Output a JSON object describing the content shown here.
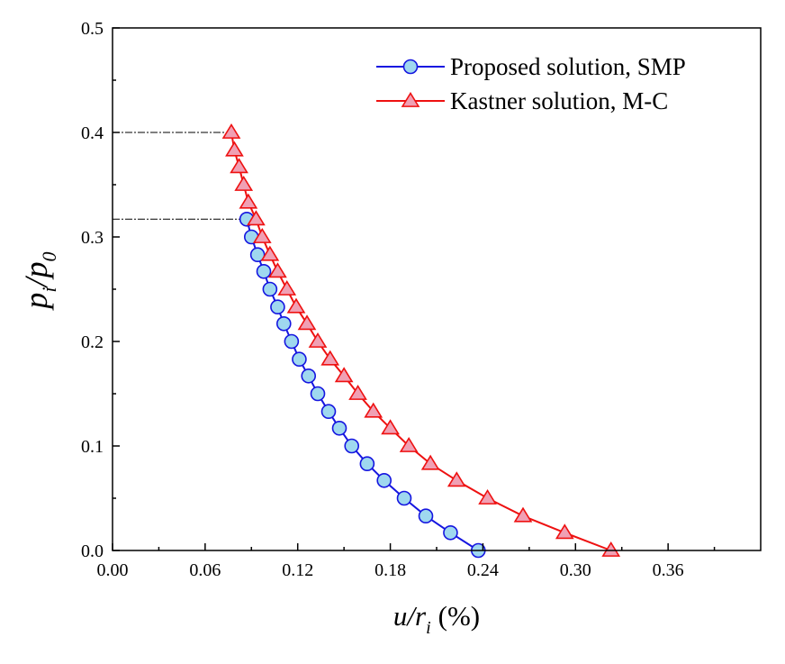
{
  "chart_data": {
    "type": "line",
    "title": "",
    "xlabel": {
      "main": "u/r",
      "sub": "i",
      "unit": "(%)"
    },
    "ylabel": {
      "p": "p",
      "p_sub": "i",
      "slash": "/p",
      "zero_sub": "0"
    },
    "xlim": [
      0.0,
      0.42
    ],
    "ylim": [
      0.0,
      0.5
    ],
    "xticks": [
      "0.00",
      "0.06",
      "0.12",
      "0.18",
      "0.24",
      "0.30",
      "0.36"
    ],
    "xtick_values": [
      0.0,
      0.06,
      0.12,
      0.18,
      0.24,
      0.3,
      0.36
    ],
    "yticks": [
      "0.0",
      "0.1",
      "0.2",
      "0.3",
      "0.4",
      "0.5"
    ],
    "ytick_values": [
      0.0,
      0.1,
      0.2,
      0.3,
      0.4,
      0.5
    ],
    "grid": false,
    "legend_position": "top-right",
    "series": [
      {
        "name": "Proposed solution, SMP",
        "marker": "circle",
        "line_color": "#1515e0",
        "marker_fill": "#9fd8ef",
        "x": [
          0.087,
          0.09,
          0.094,
          0.098,
          0.102,
          0.107,
          0.111,
          0.116,
          0.121,
          0.127,
          0.133,
          0.14,
          0.147,
          0.155,
          0.165,
          0.176,
          0.189,
          0.203,
          0.219,
          0.237
        ],
        "y": [
          0.317,
          0.3,
          0.283,
          0.267,
          0.25,
          0.233,
          0.217,
          0.2,
          0.183,
          0.167,
          0.15,
          0.133,
          0.117,
          0.1,
          0.083,
          0.067,
          0.05,
          0.033,
          0.017,
          0.0
        ]
      },
      {
        "name": "Kastner solution, M-C",
        "marker": "triangle",
        "line_color": "#ee1111",
        "marker_fill": "#f0a0b4",
        "x": [
          0.077,
          0.079,
          0.082,
          0.085,
          0.088,
          0.093,
          0.097,
          0.102,
          0.107,
          0.113,
          0.119,
          0.126,
          0.133,
          0.141,
          0.15,
          0.159,
          0.169,
          0.18,
          0.192,
          0.206,
          0.223,
          0.243,
          0.266,
          0.293,
          0.323
        ],
        "y": [
          0.4,
          0.383,
          0.367,
          0.35,
          0.333,
          0.317,
          0.3,
          0.283,
          0.267,
          0.25,
          0.233,
          0.217,
          0.2,
          0.183,
          0.167,
          0.15,
          0.133,
          0.117,
          0.1,
          0.083,
          0.067,
          0.05,
          0.033,
          0.017,
          0.0
        ]
      }
    ],
    "reference_lines": [
      {
        "y": 0.4,
        "x_start": 0.0,
        "x_end": 0.077,
        "style": "dash-dot"
      },
      {
        "y": 0.317,
        "x_start": 0.0,
        "x_end": 0.087,
        "style": "dash-dot"
      }
    ]
  }
}
